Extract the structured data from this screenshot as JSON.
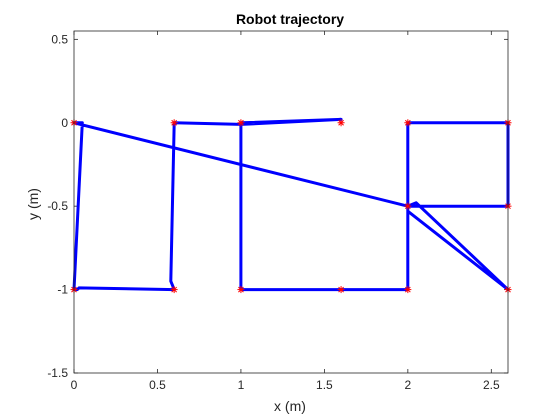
{
  "chart_data": {
    "type": "line",
    "title": "Robot trajectory",
    "xlabel": "x (m)",
    "ylabel": "y (m)",
    "xlim": [
      0,
      2.6
    ],
    "ylim": [
      -1.5,
      0.55
    ],
    "grid": false,
    "x_ticks": [
      0,
      0.5,
      1,
      1.5,
      2,
      2.5
    ],
    "x_tick_labels": [
      "0",
      "0.5",
      "1",
      "1.5",
      "2",
      "2.5"
    ],
    "y_ticks": [
      0.5,
      0,
      -0.5,
      -1,
      -1.5
    ],
    "y_tick_labels": [
      "0.5",
      "0",
      "-0.5",
      "-1",
      "-1.5"
    ],
    "series": [
      {
        "role": "trajectory",
        "color": "#0000ff",
        "x": [
          0,
          0.05,
          0.0,
          0.02,
          0.03,
          0.6,
          0.58,
          0.6,
          0.6,
          1.0,
          1.6,
          1.0,
          1.0,
          2.0,
          2.0,
          2.6,
          2.6,
          2.0,
          2.05,
          2.6,
          2.0,
          2.0,
          0
        ],
        "y": [
          0,
          0,
          -1.0,
          -1.0,
          -0.99,
          -1.0,
          -0.95,
          0,
          0,
          -0.01,
          0.02,
          0,
          -1.0,
          -1.0,
          0,
          0,
          -0.5,
          -0.5,
          -0.48,
          -1.0,
          -0.53,
          -0.5,
          0
        ]
      }
    ],
    "waypoints": {
      "color": "#ff0000",
      "x": [
        0,
        0,
        0.6,
        0.6,
        1.0,
        1.0,
        1.6,
        1.6,
        2.0,
        2.0,
        2.0,
        2.6,
        2.6,
        2.6
      ],
      "y": [
        0,
        -1.0,
        0,
        -1.0,
        0,
        -1.0,
        0,
        -1.0,
        0,
        -0.5,
        -1.0,
        0,
        -0.5,
        -1.0
      ]
    }
  }
}
